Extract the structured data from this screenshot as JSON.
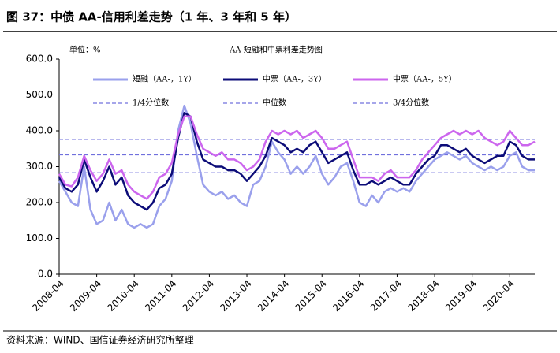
{
  "chart_data": {
    "type": "line",
    "title": "图 37：中债 AA-信用利差走势（1 年、3 年和 5 年）",
    "subtitle": "AA-短融和中票利差走势图",
    "unit_label": "单位：%",
    "source": "资料来源：WIND、国信证券经济研究所整理",
    "x": [
      "2008-04",
      "2008-06",
      "2008-08",
      "2008-10",
      "2008-12",
      "2009-02",
      "2009-04",
      "2009-06",
      "2009-08",
      "2009-10",
      "2009-12",
      "2010-02",
      "2010-04",
      "2010-06",
      "2010-08",
      "2010-10",
      "2010-12",
      "2011-02",
      "2011-04",
      "2011-06",
      "2011-08",
      "2011-10",
      "2011-12",
      "2012-02",
      "2012-04",
      "2012-06",
      "2012-08",
      "2012-10",
      "2012-12",
      "2013-02",
      "2013-04",
      "2013-06",
      "2013-08",
      "2013-10",
      "2013-12",
      "2014-02",
      "2014-04",
      "2014-06",
      "2014-08",
      "2014-10",
      "2014-12",
      "2015-02",
      "2015-04",
      "2015-06",
      "2015-08",
      "2015-10",
      "2015-12",
      "2016-02",
      "2016-04",
      "2016-06",
      "2016-08",
      "2016-10",
      "2016-12",
      "2017-02",
      "2017-04",
      "2017-06",
      "2017-08",
      "2017-10",
      "2017-12",
      "2018-02",
      "2018-04",
      "2018-06",
      "2018-08",
      "2018-10",
      "2018-12",
      "2019-02",
      "2019-04",
      "2019-06",
      "2019-08",
      "2019-10",
      "2019-12",
      "2020-02",
      "2020-04",
      "2020-06",
      "2020-08",
      "2020-10",
      "2020-12"
    ],
    "xticks": [
      "2008-04",
      "2009-04",
      "2010-04",
      "2011-04",
      "2012-04",
      "2013-04",
      "2014-04",
      "2015-04",
      "2016-04",
      "2017-04",
      "2018-04",
      "2019-04",
      "2020-04"
    ],
    "series": [
      {
        "name": "短融（AA-，1Y）",
        "color": "#9aa0ec",
        "values": [
          260,
          230,
          200,
          190,
          300,
          180,
          140,
          150,
          200,
          150,
          180,
          140,
          130,
          140,
          130,
          140,
          190,
          210,
          260,
          400,
          470,
          420,
          330,
          250,
          230,
          220,
          230,
          210,
          220,
          200,
          190,
          250,
          260,
          300,
          370,
          340,
          320,
          280,
          300,
          280,
          300,
          330,
          280,
          250,
          270,
          300,
          310,
          260,
          200,
          190,
          220,
          200,
          230,
          240,
          230,
          240,
          230,
          260,
          280,
          300,
          320,
          330,
          340,
          330,
          320,
          330,
          310,
          300,
          290,
          300,
          290,
          300,
          330,
          340,
          300,
          290,
          290
        ]
      },
      {
        "name": "中票（AA-，3Y）",
        "color": "#0c0c78",
        "values": [
          270,
          240,
          230,
          250,
          320,
          270,
          230,
          260,
          300,
          250,
          270,
          220,
          200,
          190,
          180,
          200,
          240,
          250,
          280,
          380,
          450,
          440,
          370,
          320,
          310,
          300,
          300,
          290,
          290,
          280,
          260,
          280,
          300,
          330,
          380,
          370,
          360,
          340,
          350,
          340,
          360,
          370,
          340,
          310,
          320,
          330,
          340,
          290,
          250,
          250,
          260,
          250,
          260,
          270,
          260,
          250,
          250,
          280,
          300,
          320,
          330,
          360,
          360,
          350,
          340,
          350,
          330,
          320,
          310,
          320,
          330,
          330,
          370,
          360,
          330,
          320,
          320
        ]
      },
      {
        "name": "中票（AA-，5Y）",
        "color": "#cc66ee",
        "values": [
          280,
          250,
          245,
          270,
          330,
          290,
          260,
          280,
          320,
          280,
          290,
          250,
          230,
          220,
          210,
          230,
          270,
          280,
          310,
          390,
          440,
          440,
          390,
          350,
          340,
          330,
          340,
          320,
          320,
          310,
          290,
          300,
          320,
          370,
          400,
          390,
          400,
          390,
          400,
          380,
          390,
          400,
          380,
          350,
          350,
          360,
          370,
          320,
          270,
          270,
          270,
          260,
          280,
          290,
          270,
          270,
          270,
          290,
          320,
          340,
          360,
          380,
          390,
          400,
          390,
          400,
          390,
          400,
          380,
          370,
          360,
          370,
          400,
          380,
          360,
          360,
          370
        ]
      }
    ],
    "reference_lines": [
      {
        "name": "1/4分位数",
        "value": 283,
        "color": "#7070dd"
      },
      {
        "name": "中位数",
        "value": 333,
        "color": "#7070dd"
      },
      {
        "name": "3/4分位数",
        "value": 376,
        "color": "#7070dd"
      }
    ],
    "ylim": [
      0,
      600
    ],
    "yticks": [
      {
        "value": 0,
        "label": "0.0"
      },
      {
        "value": 100,
        "label": "100.0"
      },
      {
        "value": 200,
        "label": "200.0"
      },
      {
        "value": 300,
        "label": "300.0"
      },
      {
        "value": 400,
        "label": "400.0"
      },
      {
        "value": 500,
        "label": "500.0"
      },
      {
        "value": 600,
        "label": "600.0"
      }
    ]
  }
}
